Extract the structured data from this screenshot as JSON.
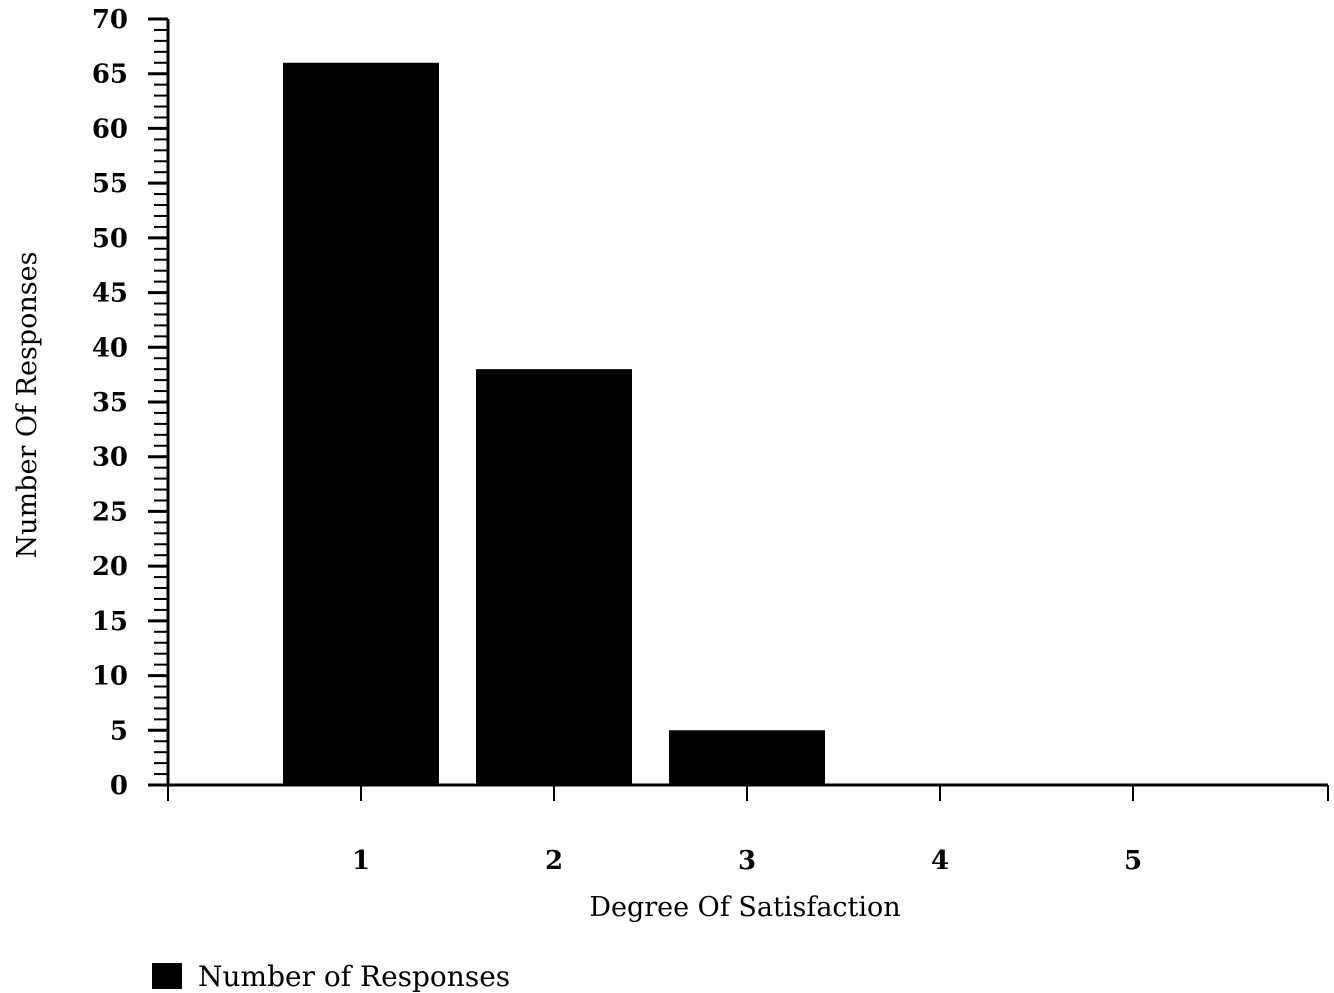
{
  "chart_data": {
    "type": "bar",
    "categories": [
      "1",
      "2",
      "3",
      "4",
      "5"
    ],
    "series": [
      {
        "name": "Number of Responses",
        "values": [
          66,
          38,
          5,
          0,
          0
        ],
        "color": "#000000"
      }
    ],
    "xlabel": "Degree Of Satisfaction",
    "ylabel": "Number Of Responses",
    "ylim": [
      0,
      70
    ],
    "yticks": [
      0,
      5,
      10,
      15,
      20,
      25,
      30,
      35,
      40,
      45,
      50,
      55,
      60,
      65,
      70
    ],
    "ytick_labels": [
      "0",
      "5",
      "10",
      "15",
      "20",
      "25",
      "30",
      "35",
      "40",
      "45",
      "50",
      "55",
      "60",
      "65",
      "70"
    ],
    "minor_tick_step": 1,
    "grid": false,
    "legend_position": "bottom-left"
  }
}
